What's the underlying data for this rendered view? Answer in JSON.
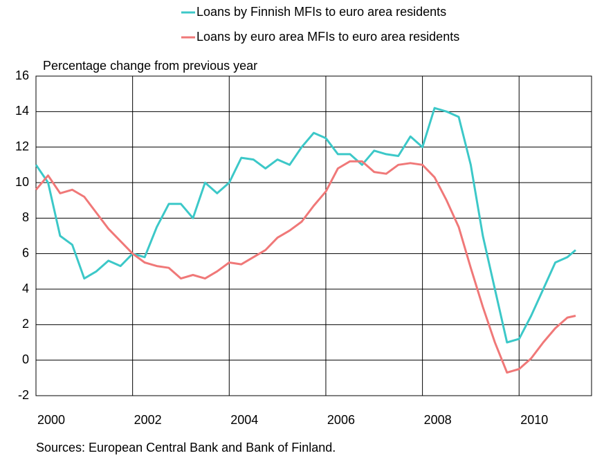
{
  "chart_data": {
    "type": "line",
    "y_label": "Percentage change from previous year",
    "source": "Sources: European Central Bank and Bank of Finland.",
    "x": [
      2000,
      2000.25,
      2000.5,
      2000.75,
      2001,
      2001.25,
      2001.5,
      2001.75,
      2002,
      2002.25,
      2002.5,
      2002.75,
      2003,
      2003.25,
      2003.5,
      2003.75,
      2004,
      2004.25,
      2004.5,
      2004.75,
      2005,
      2005.25,
      2005.5,
      2005.75,
      2006,
      2006.25,
      2006.5,
      2006.75,
      2007,
      2007.25,
      2007.5,
      2007.75,
      2008,
      2008.25,
      2008.5,
      2008.75,
      2009,
      2009.25,
      2009.5,
      2009.75,
      2010,
      2010.25,
      2010.5,
      2010.75,
      2011,
      2011.17
    ],
    "series": [
      {
        "name": "Loans by Finnish MFIs to euro area residents",
        "color": "#3cc8c8",
        "values": [
          11.0,
          10.0,
          7.0,
          6.5,
          4.6,
          5.0,
          5.6,
          5.3,
          6.0,
          5.8,
          7.5,
          8.8,
          8.8,
          8.0,
          10.0,
          9.4,
          10.0,
          11.4,
          11.3,
          10.8,
          11.3,
          11.0,
          12.0,
          12.8,
          12.5,
          11.6,
          11.6,
          11.0,
          11.8,
          11.6,
          11.5,
          12.6,
          12.0,
          14.2,
          14.0,
          13.7,
          11.0,
          7.0,
          4.0,
          1.0,
          1.2,
          2.5,
          4.0,
          5.5,
          5.8,
          6.2
        ]
      },
      {
        "name": "Loans by euro area MFIs to euro area residents",
        "color": "#f07878",
        "values": [
          9.6,
          10.4,
          9.4,
          9.6,
          9.2,
          8.3,
          7.4,
          6.7,
          6.0,
          5.5,
          5.3,
          5.2,
          4.6,
          4.8,
          4.6,
          5.0,
          5.5,
          5.4,
          5.8,
          6.2,
          6.9,
          7.3,
          7.8,
          8.7,
          9.5,
          10.8,
          11.2,
          11.2,
          10.6,
          10.5,
          11.0,
          11.1,
          11.0,
          10.3,
          9.0,
          7.5,
          5.2,
          3.0,
          1.0,
          -0.7,
          -0.5,
          0.1,
          1.0,
          1.8,
          2.4,
          2.5
        ]
      }
    ],
    "xlim": [
      2000,
      2011.5
    ],
    "xticks": [
      2000,
      2002,
      2004,
      2006,
      2008,
      2010
    ],
    "ylim": [
      -2,
      16
    ],
    "yticks": [
      -2,
      0,
      2,
      4,
      6,
      8,
      10,
      12,
      14,
      16
    ],
    "grid": true
  }
}
